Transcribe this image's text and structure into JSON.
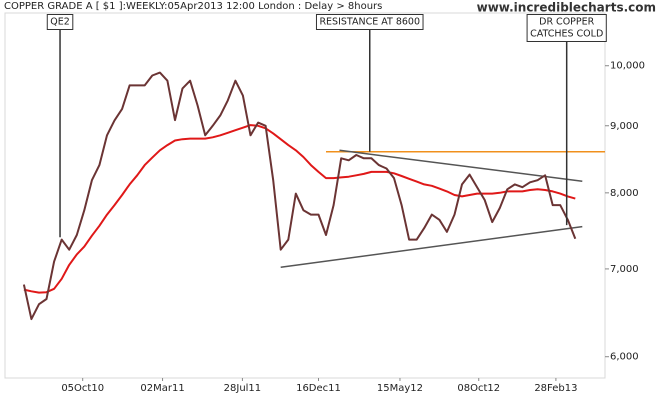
{
  "chart_data": {
    "type": "line",
    "title": "COPPER GRADE A [ $1 ]:WEEKLY:05Apr2013 12:00 London : Delay > 8hours",
    "source": "www.incrediblecharts.com",
    "log_scale": true,
    "grid": false,
    "x": [
      "2010-06-18",
      "2010-07-02",
      "2010-07-16",
      "2010-07-30",
      "2010-08-13",
      "2010-08-27",
      "2010-09-10",
      "2010-09-24",
      "2010-10-08",
      "2010-10-22",
      "2010-11-05",
      "2010-11-19",
      "2010-12-03",
      "2010-12-17",
      "2010-12-31",
      "2011-01-14",
      "2011-01-28",
      "2011-02-11",
      "2011-02-25",
      "2011-03-11",
      "2011-03-25",
      "2011-04-08",
      "2011-04-22",
      "2011-05-06",
      "2011-05-20",
      "2011-06-03",
      "2011-06-17",
      "2011-07-01",
      "2011-07-15",
      "2011-07-29",
      "2011-08-12",
      "2011-08-26",
      "2011-09-09",
      "2011-09-23",
      "2011-10-07",
      "2011-10-21",
      "2011-11-04",
      "2011-11-18",
      "2011-12-02",
      "2011-12-16",
      "2011-12-30",
      "2012-01-13",
      "2012-01-27",
      "2012-02-10",
      "2012-02-24",
      "2012-03-09",
      "2012-03-23",
      "2012-04-06",
      "2012-04-20",
      "2012-05-04",
      "2012-05-18",
      "2012-06-01",
      "2012-06-15",
      "2012-06-29",
      "2012-07-13",
      "2012-07-27",
      "2012-08-10",
      "2012-08-24",
      "2012-09-07",
      "2012-09-21",
      "2012-10-05",
      "2012-10-19",
      "2012-11-02",
      "2012-11-16",
      "2012-11-30",
      "2012-12-14",
      "2012-12-28",
      "2013-01-11",
      "2013-01-25",
      "2013-02-08",
      "2013-02-22",
      "2013-03-08",
      "2013-03-22",
      "2013-04-05"
    ],
    "series": [
      {
        "color": "#6b3434",
        "values": [
          6810,
          6410,
          6580,
          6640,
          7090,
          7370,
          7240,
          7430,
          7760,
          8180,
          8400,
          8850,
          9085,
          9270,
          9660,
          9660,
          9660,
          9830,
          9880,
          9740,
          9090,
          9610,
          9740,
          9325,
          8850,
          9000,
          9165,
          9410,
          9740,
          9490,
          8850,
          9050,
          9000,
          8180,
          7240,
          7370,
          7990,
          7760,
          7700,
          7700,
          7430,
          7830,
          8500,
          8470,
          8550,
          8500,
          8500,
          8400,
          8350,
          8210,
          7830,
          7370,
          7370,
          7520,
          7700,
          7630,
          7470,
          7700,
          8120,
          8260,
          8080,
          7900,
          7600,
          7790,
          8050,
          8120,
          8080,
          8150,
          8180,
          8250,
          7830,
          7830,
          7630,
          7380
        ]
      },
      {
        "color": "#e01818",
        "values": [
          6750,
          6730,
          6715,
          6720,
          6760,
          6880,
          7050,
          7180,
          7280,
          7420,
          7550,
          7700,
          7830,
          7970,
          8120,
          8250,
          8400,
          8510,
          8620,
          8700,
          8770,
          8790,
          8800,
          8800,
          8800,
          8820,
          8850,
          8890,
          8930,
          8970,
          9010,
          9000,
          8960,
          8880,
          8790,
          8700,
          8620,
          8520,
          8400,
          8300,
          8210,
          8210,
          8220,
          8230,
          8250,
          8270,
          8300,
          8300,
          8300,
          8280,
          8240,
          8200,
          8160,
          8120,
          8100,
          8060,
          8020,
          7970,
          7950,
          7970,
          7990,
          7990,
          7990,
          8000,
          8020,
          8020,
          8020,
          8040,
          8050,
          8040,
          8020,
          7990,
          7950,
          7920
        ]
      }
    ],
    "trend_lines": [
      {
        "color": "#f0901c",
        "x": [
          "2011-12-30",
          "2013-05-30"
        ],
        "values": [
          8600,
          8600
        ]
      },
      {
        "color": "#555555",
        "x": [
          "2012-01-24",
          "2013-04-18"
        ],
        "values": [
          8620,
          8165
        ]
      },
      {
        "color": "#555555",
        "x": [
          "2011-10-07",
          "2013-04-18"
        ],
        "values": [
          7020,
          7540
        ]
      }
    ],
    "annotations": [
      {
        "text": [
          "QE2"
        ],
        "x": "2010-08-24",
        "value": 7400
      },
      {
        "text": [
          "RESISTANCE AT 8600"
        ],
        "x": "2012-03-20",
        "value": 8600
      },
      {
        "text": [
          "DR COPPER",
          "CATCHES COLD"
        ],
        "x": "2013-03-20",
        "value": 7560
      }
    ],
    "xlim": [
      "2010-05-14",
      "2013-05-30"
    ],
    "xticks": [
      {
        "value": "2010-10-05",
        "label": "05Oct10"
      },
      {
        "value": "2011-03-02",
        "label": "02Mar11"
      },
      {
        "value": "2011-07-28",
        "label": "28Jul11"
      },
      {
        "value": "2011-12-16",
        "label": "16Dec11"
      },
      {
        "value": "2012-05-15",
        "label": "15May12"
      },
      {
        "value": "2012-10-08",
        "label": "08Oct12"
      },
      {
        "value": "2013-02-28",
        "label": "28Feb13"
      }
    ],
    "ylim": [
      5780,
      10970
    ],
    "yticks": [
      {
        "value": 6000,
        "label": "6,000"
      },
      {
        "value": 7000,
        "label": "7,000"
      },
      {
        "value": 8000,
        "label": "8,000"
      },
      {
        "value": 9000,
        "label": "9,000"
      },
      {
        "value": 10000,
        "label": "10,000"
      }
    ]
  }
}
